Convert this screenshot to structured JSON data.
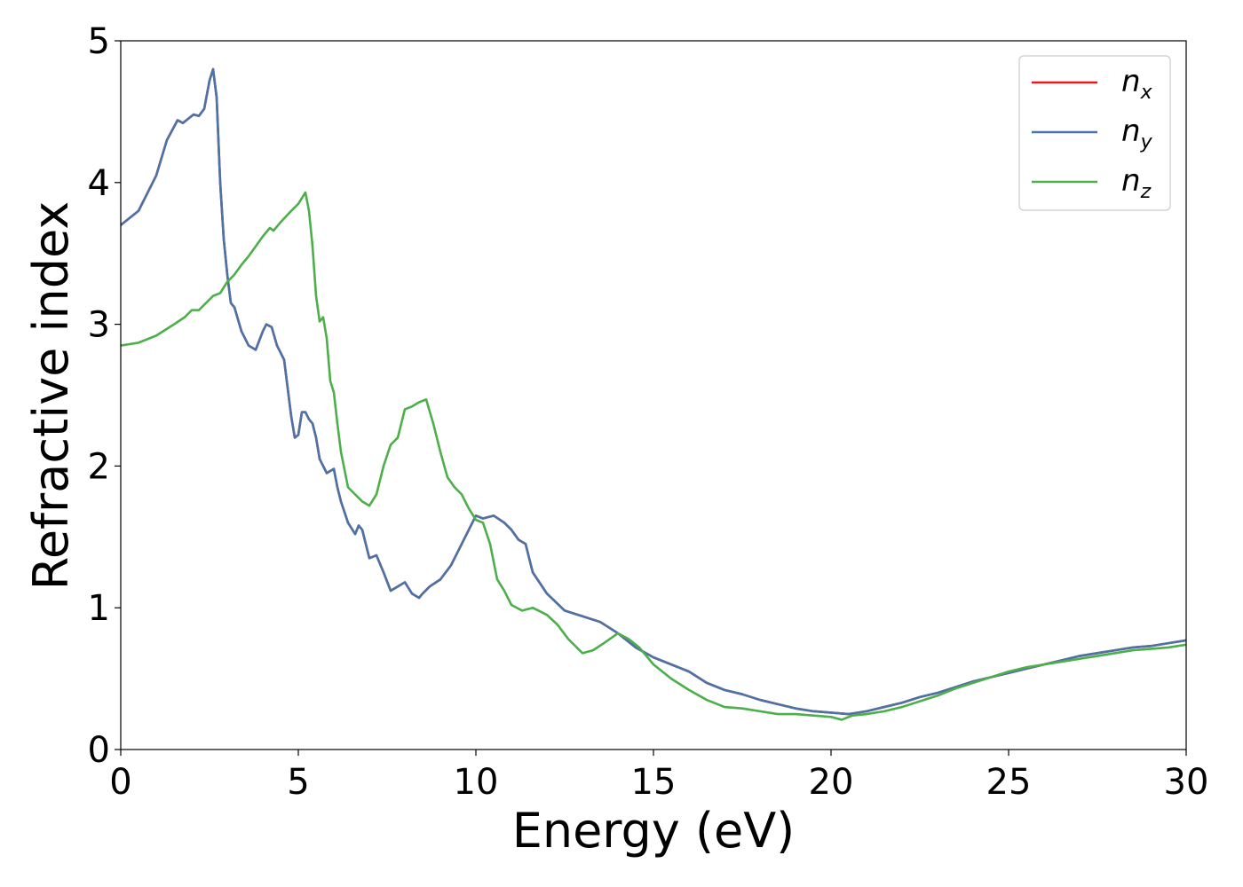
{
  "chart_data": {
    "type": "line",
    "title": "",
    "xlabel": "Energy (eV)",
    "ylabel": "Refractive index",
    "xlim": [
      0,
      30
    ],
    "ylim": [
      0,
      5
    ],
    "xticks": [
      0,
      5,
      10,
      15,
      20,
      25,
      30
    ],
    "yticks": [
      0,
      1,
      2,
      3,
      4,
      5
    ],
    "grid": false,
    "legend_position": "top-right",
    "series": [
      {
        "name": "n_x",
        "label_main": "n",
        "label_sub": "x",
        "color": "#e41a1c",
        "x": [
          0,
          0.5,
          1.0,
          1.3,
          1.6,
          1.75,
          1.9,
          2.05,
          2.2,
          2.35,
          2.5,
          2.6,
          2.7,
          2.8,
          2.9,
          3.0,
          3.1,
          3.2,
          3.4,
          3.6,
          3.8,
          4.0,
          4.1,
          4.25,
          4.4,
          4.6,
          4.7,
          4.8,
          4.9,
          5.0,
          5.1,
          5.2,
          5.3,
          5.4,
          5.5,
          5.6,
          5.8,
          6.0,
          6.1,
          6.2,
          6.4,
          6.6,
          6.7,
          6.8,
          7.0,
          7.2,
          7.4,
          7.6,
          7.8,
          8.0,
          8.2,
          8.4,
          8.5,
          8.7,
          9.0,
          9.3,
          9.6,
          9.8,
          10.0,
          10.2,
          10.5,
          10.8,
          11.0,
          11.2,
          11.4,
          11.6,
          12.0,
          12.5,
          13.0,
          13.5,
          14.0,
          14.5,
          15.0,
          15.5,
          16.0,
          16.5,
          17.0,
          17.5,
          18.0,
          18.5,
          19.0,
          19.5,
          20.0,
          20.5,
          21.0,
          21.5,
          22.0,
          22.5,
          23.0,
          23.5,
          24.0,
          24.5,
          25.0,
          25.5,
          26.0,
          26.5,
          27.0,
          27.5,
          28.0,
          28.5,
          29.0,
          29.5,
          30.0
        ],
        "y": [
          3.7,
          3.8,
          4.05,
          4.3,
          4.44,
          4.42,
          4.45,
          4.48,
          4.47,
          4.52,
          4.72,
          4.8,
          4.6,
          4.0,
          3.6,
          3.35,
          3.15,
          3.12,
          2.95,
          2.85,
          2.82,
          2.95,
          3.0,
          2.98,
          2.85,
          2.75,
          2.55,
          2.35,
          2.2,
          2.22,
          2.38,
          2.38,
          2.33,
          2.3,
          2.2,
          2.05,
          1.95,
          1.98,
          1.85,
          1.75,
          1.6,
          1.52,
          1.58,
          1.55,
          1.35,
          1.37,
          1.25,
          1.12,
          1.15,
          1.18,
          1.1,
          1.07,
          1.1,
          1.15,
          1.2,
          1.3,
          1.45,
          1.55,
          1.65,
          1.63,
          1.65,
          1.6,
          1.55,
          1.48,
          1.45,
          1.25,
          1.1,
          0.98,
          0.94,
          0.9,
          0.82,
          0.72,
          0.65,
          0.6,
          0.55,
          0.47,
          0.42,
          0.39,
          0.35,
          0.32,
          0.29,
          0.27,
          0.26,
          0.25,
          0.27,
          0.3,
          0.33,
          0.37,
          0.4,
          0.44,
          0.48,
          0.51,
          0.54,
          0.57,
          0.6,
          0.63,
          0.66,
          0.68,
          0.7,
          0.72,
          0.73,
          0.75,
          0.77
        ]
      },
      {
        "name": "n_y",
        "label_main": "n",
        "label_sub": "y",
        "color": "#4a74a8",
        "x": [
          0,
          0.5,
          1.0,
          1.3,
          1.6,
          1.75,
          1.9,
          2.05,
          2.2,
          2.35,
          2.5,
          2.6,
          2.7,
          2.8,
          2.9,
          3.0,
          3.1,
          3.2,
          3.4,
          3.6,
          3.8,
          4.0,
          4.1,
          4.25,
          4.4,
          4.6,
          4.7,
          4.8,
          4.9,
          5.0,
          5.1,
          5.2,
          5.3,
          5.4,
          5.5,
          5.6,
          5.8,
          6.0,
          6.1,
          6.2,
          6.4,
          6.6,
          6.7,
          6.8,
          7.0,
          7.2,
          7.4,
          7.6,
          7.8,
          8.0,
          8.2,
          8.4,
          8.5,
          8.7,
          9.0,
          9.3,
          9.6,
          9.8,
          10.0,
          10.2,
          10.5,
          10.8,
          11.0,
          11.2,
          11.4,
          11.6,
          12.0,
          12.5,
          13.0,
          13.5,
          14.0,
          14.5,
          15.0,
          15.5,
          16.0,
          16.5,
          17.0,
          17.5,
          18.0,
          18.5,
          19.0,
          19.5,
          20.0,
          20.5,
          21.0,
          21.5,
          22.0,
          22.5,
          23.0,
          23.5,
          24.0,
          24.5,
          25.0,
          25.5,
          26.0,
          26.5,
          27.0,
          27.5,
          28.0,
          28.5,
          29.0,
          29.5,
          30.0
        ],
        "y": [
          3.7,
          3.8,
          4.05,
          4.3,
          4.44,
          4.42,
          4.45,
          4.48,
          4.47,
          4.52,
          4.72,
          4.8,
          4.6,
          4.0,
          3.6,
          3.35,
          3.15,
          3.12,
          2.95,
          2.85,
          2.82,
          2.95,
          3.0,
          2.98,
          2.85,
          2.75,
          2.55,
          2.35,
          2.2,
          2.22,
          2.38,
          2.38,
          2.33,
          2.3,
          2.2,
          2.05,
          1.95,
          1.98,
          1.85,
          1.75,
          1.6,
          1.52,
          1.58,
          1.55,
          1.35,
          1.37,
          1.25,
          1.12,
          1.15,
          1.18,
          1.1,
          1.07,
          1.1,
          1.15,
          1.2,
          1.3,
          1.45,
          1.55,
          1.65,
          1.63,
          1.65,
          1.6,
          1.55,
          1.48,
          1.45,
          1.25,
          1.1,
          0.98,
          0.94,
          0.9,
          0.82,
          0.72,
          0.65,
          0.6,
          0.55,
          0.47,
          0.42,
          0.39,
          0.35,
          0.32,
          0.29,
          0.27,
          0.26,
          0.25,
          0.27,
          0.3,
          0.33,
          0.37,
          0.4,
          0.44,
          0.48,
          0.51,
          0.54,
          0.57,
          0.6,
          0.63,
          0.66,
          0.68,
          0.7,
          0.72,
          0.73,
          0.75,
          0.77
        ]
      },
      {
        "name": "n_z",
        "label_main": "n",
        "label_sub": "z",
        "color": "#4daf4a",
        "x": [
          0,
          0.5,
          1.0,
          1.5,
          1.8,
          2.0,
          2.2,
          2.4,
          2.6,
          2.8,
          3.0,
          3.2,
          3.4,
          3.6,
          3.8,
          4.0,
          4.2,
          4.3,
          4.5,
          4.8,
          5.0,
          5.2,
          5.3,
          5.4,
          5.5,
          5.6,
          5.7,
          5.8,
          5.9,
          6.0,
          6.1,
          6.2,
          6.4,
          6.6,
          6.8,
          7.0,
          7.2,
          7.4,
          7.6,
          7.8,
          8.0,
          8.2,
          8.4,
          8.6,
          8.8,
          9.0,
          9.2,
          9.4,
          9.6,
          9.8,
          10.0,
          10.2,
          10.4,
          10.6,
          10.8,
          11.0,
          11.3,
          11.6,
          12.0,
          12.3,
          12.6,
          13.0,
          13.3,
          13.6,
          14.0,
          14.3,
          14.6,
          15.0,
          15.5,
          16.0,
          16.5,
          17.0,
          17.5,
          18.0,
          18.5,
          19.0,
          19.5,
          20.0,
          20.3,
          20.6,
          21.0,
          21.5,
          22.0,
          22.5,
          23.0,
          23.5,
          24.0,
          24.5,
          25.0,
          25.5,
          26.0,
          26.5,
          27.0,
          27.5,
          28.0,
          28.5,
          29.0,
          29.5,
          30.0
        ],
        "y": [
          2.85,
          2.87,
          2.92,
          3.0,
          3.05,
          3.1,
          3.1,
          3.15,
          3.2,
          3.22,
          3.3,
          3.35,
          3.42,
          3.48,
          3.55,
          3.62,
          3.68,
          3.66,
          3.72,
          3.8,
          3.85,
          3.93,
          3.8,
          3.55,
          3.2,
          3.02,
          3.05,
          2.9,
          2.6,
          2.52,
          2.3,
          2.1,
          1.85,
          1.8,
          1.75,
          1.72,
          1.8,
          2.0,
          2.15,
          2.2,
          2.4,
          2.42,
          2.45,
          2.47,
          2.3,
          2.1,
          1.92,
          1.85,
          1.8,
          1.7,
          1.62,
          1.6,
          1.45,
          1.2,
          1.12,
          1.02,
          0.98,
          1.0,
          0.95,
          0.88,
          0.78,
          0.68,
          0.7,
          0.75,
          0.82,
          0.78,
          0.72,
          0.6,
          0.5,
          0.42,
          0.35,
          0.3,
          0.29,
          0.27,
          0.25,
          0.25,
          0.24,
          0.23,
          0.21,
          0.24,
          0.25,
          0.27,
          0.3,
          0.34,
          0.38,
          0.43,
          0.47,
          0.51,
          0.55,
          0.58,
          0.6,
          0.62,
          0.64,
          0.66,
          0.68,
          0.7,
          0.71,
          0.72,
          0.74
        ]
      }
    ]
  }
}
